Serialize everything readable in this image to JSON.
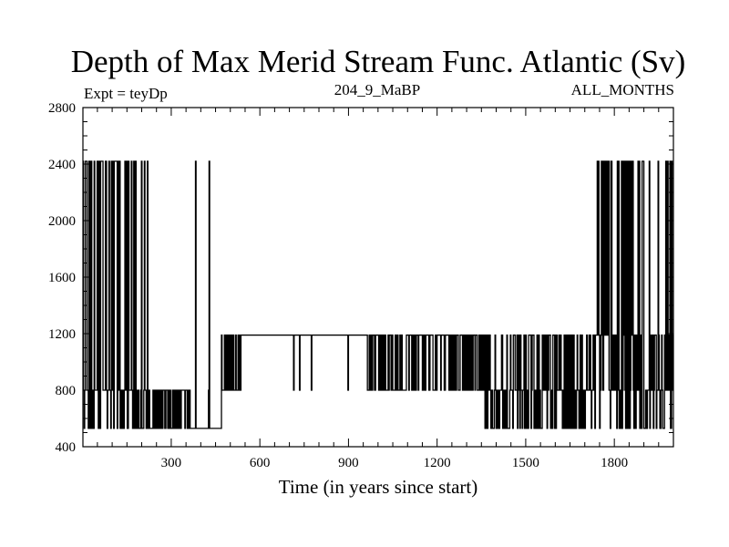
{
  "chart_data": {
    "type": "line",
    "title": "Depth of Max Merid Stream Func. Atlantic (Sv)",
    "left_note": "Expt = teyDp",
    "center_note": "204_9_MaBP",
    "right_note": "ALL_MONTHS",
    "xlabel": "Time (in years since start)",
    "ylabel": "",
    "xlim": [
      1,
      2000
    ],
    "ylim": [
      400,
      2800
    ],
    "xticks": [
      300,
      600,
      900,
      1200,
      1500,
      1800
    ],
    "yticks": [
      400,
      800,
      1200,
      1600,
      2000,
      2400,
      2800
    ],
    "grid": false,
    "depth_levels": [
      530,
      800,
      1190,
      2420
    ],
    "series": [
      {
        "values_description": "",
        "segments": [
          {
            "from": 1,
            "to": 230,
            "levels": [
              530,
              800,
              2420
            ],
            "mode": "switching"
          },
          {
            "from": 230,
            "to": 370,
            "levels": [
              530,
              800
            ],
            "mode": "switching"
          },
          {
            "from": 370,
            "to": 470,
            "levels": [
              530,
              800,
              2420
            ],
            "mode": "sparse"
          },
          {
            "from": 470,
            "to": 540,
            "levels": [
              800,
              1190
            ],
            "mode": "switching"
          },
          {
            "from": 540,
            "to": 960,
            "levels": [
              1190,
              800
            ],
            "mode": "sparse"
          },
          {
            "from": 960,
            "to": 1350,
            "levels": [
              800,
              1190
            ],
            "mode": "switching"
          },
          {
            "from": 1350,
            "to": 1740,
            "levels": [
              530,
              800,
              1190
            ],
            "mode": "switching"
          },
          {
            "from": 1740,
            "to": 2000,
            "levels": [
              530,
              800,
              1190,
              2420
            ],
            "mode": "switching"
          }
        ]
      }
    ]
  }
}
